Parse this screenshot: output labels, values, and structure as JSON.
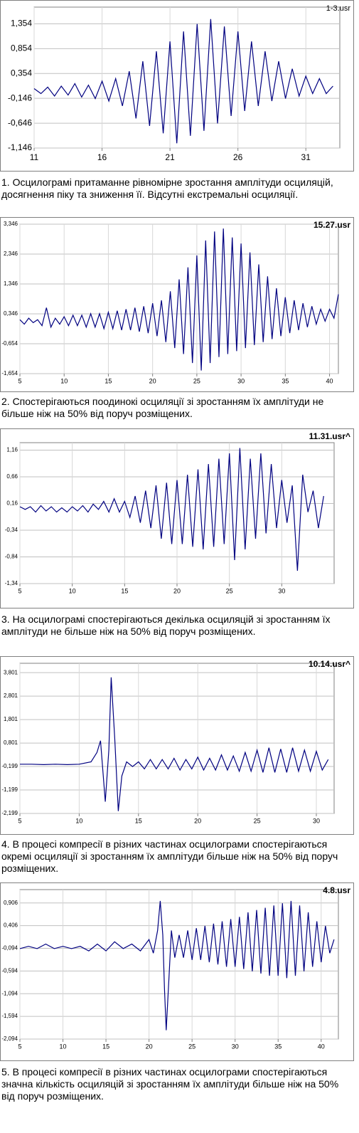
{
  "chart_data": [
    {
      "type": "line",
      "title": "1-3.usr",
      "caption": "1. Осцилограмі притаманне рівномірне зростання амплітуди осциляцій, досягнення піку та зниження її. Відсутні екстремальні осциляції.",
      "xlim": [
        11,
        33.5
      ],
      "ylim": [
        -1.146,
        1.69
      ],
      "xticks": [
        11,
        16,
        21,
        26,
        31
      ],
      "yticks": [
        {
          "value": 1.354,
          "label": "1,354"
        },
        {
          "value": 0.854,
          "label": "0,854"
        },
        {
          "value": 0.354,
          "label": "0,354"
        },
        {
          "value": -0.146,
          "label": "-0,146"
        },
        {
          "value": -0.646,
          "label": "-0,646"
        },
        {
          "value": -1.146,
          "label": "-1,146"
        }
      ],
      "grid": true,
      "series": [
        {
          "color": "#000080",
          "x": [
            11,
            11.5,
            12,
            12.5,
            13,
            13.5,
            14,
            14.5,
            15,
            15.5,
            16,
            16.5,
            17,
            17.5,
            18,
            18.5,
            19,
            19.5,
            20,
            20.5,
            21,
            21.5,
            22,
            22.5,
            23,
            23.5,
            24,
            24.5,
            25,
            25.5,
            26,
            26.5,
            27,
            27.5,
            28,
            28.5,
            29,
            29.5,
            30,
            30.5,
            31,
            31.5,
            32,
            32.5,
            33
          ],
          "values": [
            0.05,
            -0.05,
            0.08,
            -0.1,
            0.1,
            -0.08,
            0.15,
            -0.12,
            0.12,
            -0.15,
            0.2,
            -0.2,
            0.25,
            -0.3,
            0.4,
            -0.55,
            0.6,
            -0.7,
            0.8,
            -0.85,
            1.0,
            -1.05,
            1.2,
            -0.9,
            1.35,
            -0.8,
            1.45,
            -0.65,
            1.3,
            -0.5,
            1.2,
            -0.4,
            1.0,
            -0.3,
            0.8,
            -0.2,
            0.6,
            -0.15,
            0.45,
            -0.1,
            0.3,
            -0.05,
            0.25,
            -0.05,
            0.1
          ]
        }
      ]
    },
    {
      "type": "line",
      "title": "15.27.usr",
      "caption": "2. Спостерігаються поодинокі осциляції зі зростанням їх амплітуди не більше ніж на 50% від поруч розміщених.",
      "xlim": [
        5,
        41
      ],
      "ylim": [
        -1.654,
        3.346
      ],
      "xticks": [
        5,
        10,
        15,
        20,
        25,
        30,
        35,
        40
      ],
      "yticks": [
        {
          "value": 3.346,
          "label": "3,346"
        },
        {
          "value": 2.346,
          "label": "2,346"
        },
        {
          "value": 1.346,
          "label": "1,346"
        },
        {
          "value": 0.346,
          "label": "0,346"
        },
        {
          "value": -0.654,
          "label": "-0,654"
        },
        {
          "value": -1.654,
          "label": "-1,654"
        }
      ],
      "grid": true,
      "series": [
        {
          "color": "#000080",
          "x": [
            5,
            5.5,
            6,
            6.5,
            7,
            7.5,
            8,
            8.5,
            9,
            9.5,
            10,
            10.5,
            11,
            11.5,
            12,
            12.5,
            13,
            13.5,
            14,
            14.5,
            15,
            15.5,
            16,
            16.5,
            17,
            17.5,
            18,
            18.5,
            19,
            19.5,
            20,
            20.5,
            21,
            21.5,
            22,
            22.5,
            23,
            23.5,
            24,
            24.5,
            25,
            25.5,
            26,
            26.5,
            27,
            27.5,
            28,
            28.5,
            29,
            29.5,
            30,
            30.5,
            31,
            31.5,
            32,
            32.5,
            33,
            33.5,
            34,
            34.5,
            35,
            35.5,
            36,
            36.5,
            37,
            37.5,
            38,
            38.5,
            39,
            39.5,
            40,
            40.5,
            41
          ],
          "values": [
            0.15,
            0.0,
            0.2,
            0.05,
            0.15,
            -0.05,
            0.55,
            -0.1,
            0.2,
            0.0,
            0.25,
            -0.05,
            0.3,
            -0.05,
            0.3,
            -0.1,
            0.35,
            -0.1,
            0.35,
            -0.15,
            0.4,
            -0.15,
            0.45,
            -0.2,
            0.5,
            -0.2,
            0.55,
            -0.25,
            0.6,
            -0.3,
            0.7,
            -0.4,
            0.8,
            -0.6,
            1.1,
            -0.8,
            1.5,
            -1.0,
            1.9,
            -1.3,
            2.3,
            -1.55,
            2.8,
            -1.3,
            3.1,
            -1.1,
            3.2,
            -1.0,
            2.9,
            -0.9,
            2.7,
            -0.8,
            2.4,
            -0.7,
            2.0,
            -0.6,
            1.6,
            -0.5,
            1.2,
            -0.4,
            0.9,
            -0.3,
            0.8,
            -0.2,
            0.7,
            -0.1,
            0.6,
            0.0,
            0.5,
            0.1,
            0.5,
            0.2,
            1.0
          ]
        }
      ]
    },
    {
      "type": "line",
      "title": "11.31.usr^",
      "caption": "3. На осцилограмі спостерігаються декілька осциляцій зі зростанням їх амплітуди не більше ніж на 50% від поруч розміщених.",
      "xlim": [
        5,
        35
      ],
      "ylim": [
        -1.34,
        1.3
      ],
      "xticks": [
        5,
        10,
        15,
        20,
        25,
        30
      ],
      "yticks": [
        {
          "value": 1.16,
          "label": "1,16"
        },
        {
          "value": 0.66,
          "label": "0,66"
        },
        {
          "value": 0.16,
          "label": "0,16"
        },
        {
          "value": -0.34,
          "label": "-0,34"
        },
        {
          "value": -0.84,
          "label": "-0,84"
        },
        {
          "value": -1.34,
          "label": "-1,34"
        }
      ],
      "grid": true,
      "series": [
        {
          "color": "#000080",
          "x": [
            5,
            5.5,
            6,
            6.5,
            7,
            7.5,
            8,
            8.5,
            9,
            9.5,
            10,
            10.5,
            11,
            11.5,
            12,
            12.5,
            13,
            13.5,
            14,
            14.5,
            15,
            15.5,
            16,
            16.5,
            17,
            17.5,
            18,
            18.5,
            19,
            19.5,
            20,
            20.5,
            21,
            21.5,
            22,
            22.5,
            23,
            23.5,
            24,
            24.5,
            25,
            25.5,
            26,
            26.5,
            27,
            27.5,
            28,
            28.5,
            29,
            29.5,
            30,
            30.5,
            31,
            31.5,
            32,
            32.5,
            33,
            33.5,
            34
          ],
          "values": [
            0.1,
            0.05,
            0.1,
            0.0,
            0.12,
            0.02,
            0.1,
            0.0,
            0.08,
            0.0,
            0.1,
            0.02,
            0.12,
            0.0,
            0.15,
            0.05,
            0.2,
            0.0,
            0.25,
            0.0,
            0.2,
            -0.1,
            0.3,
            -0.2,
            0.4,
            -0.3,
            0.5,
            -0.5,
            0.55,
            -0.6,
            0.6,
            -0.6,
            0.7,
            -0.65,
            0.8,
            -0.7,
            0.9,
            -0.65,
            1.0,
            -0.6,
            1.1,
            -0.9,
            1.2,
            -0.7,
            1.0,
            -0.5,
            1.1,
            -0.4,
            0.9,
            -0.3,
            0.6,
            -0.2,
            0.5,
            -1.1,
            0.7,
            0.0,
            0.4,
            -0.3,
            0.3
          ]
        }
      ]
    },
    {
      "type": "line",
      "title": "10.14.usr^",
      "caption": "4. В процесі компресії в різних частинах осцилограми спостерігаються окремі осциляції зі зростанням їх амплітуди більше ніж на 50% від поруч розміщених.",
      "xlim": [
        5,
        31.5
      ],
      "ylim": [
        -2.199,
        4.2
      ],
      "xticks": [
        5,
        10,
        15,
        20,
        25,
        30
      ],
      "yticks": [
        {
          "value": 3.801,
          "label": "3,801"
        },
        {
          "value": 2.801,
          "label": "2,801"
        },
        {
          "value": 1.801,
          "label": "1,801"
        },
        {
          "value": 0.801,
          "label": "0,801"
        },
        {
          "value": -0.199,
          "label": "-0,199"
        },
        {
          "value": -1.199,
          "label": "-1,199"
        },
        {
          "value": -2.199,
          "label": "-2,199"
        }
      ],
      "grid": true,
      "series": [
        {
          "color": "#000080",
          "x": [
            5,
            6,
            7,
            8,
            9,
            10,
            11,
            11.5,
            11.8,
            12.2,
            12.5,
            12.7,
            13,
            13.3,
            13.6,
            14,
            14.5,
            15,
            15.5,
            16,
            16.5,
            17,
            17.5,
            18,
            18.5,
            19,
            19.5,
            20,
            20.5,
            21,
            21.5,
            22,
            22.5,
            23,
            23.5,
            24,
            24.5,
            25,
            25.5,
            26,
            26.5,
            27,
            27.5,
            28,
            28.5,
            29,
            29.5,
            30,
            30.5,
            31
          ],
          "values": [
            -0.1,
            -0.1,
            -0.12,
            -0.1,
            -0.12,
            -0.1,
            0.0,
            0.4,
            0.9,
            -1.7,
            0.5,
            3.6,
            1.0,
            -2.1,
            -0.6,
            0.0,
            -0.2,
            0.0,
            -0.3,
            0.1,
            -0.3,
            0.1,
            -0.3,
            0.15,
            -0.35,
            0.1,
            -0.3,
            0.2,
            -0.35,
            0.15,
            -0.35,
            0.3,
            -0.35,
            0.25,
            -0.4,
            0.4,
            -0.4,
            0.5,
            -0.45,
            0.6,
            -0.45,
            0.55,
            -0.45,
            0.6,
            -0.4,
            0.5,
            -0.4,
            0.45,
            -0.35,
            0.1
          ]
        }
      ]
    },
    {
      "type": "line",
      "title": "4.8.usr",
      "caption": "5. В процесі компресії в різних частинах осцилограми спостерігаються значна кількість осциляцій зі зростанням їх амплітуди більше ніж на 50% від поруч розміщених.",
      "xlim": [
        5,
        42
      ],
      "ylim": [
        -2.094,
        1.2
      ],
      "xticks": [
        5,
        10,
        15,
        20,
        25,
        30,
        35,
        40
      ],
      "yticks": [
        {
          "value": 0.906,
          "label": "0,906"
        },
        {
          "value": 0.406,
          "label": "0,406"
        },
        {
          "value": -0.094,
          "label": "-0,094"
        },
        {
          "value": -0.594,
          "label": "-0,594"
        },
        {
          "value": -1.094,
          "label": "-1,094"
        },
        {
          "value": -1.594,
          "label": "-1,594"
        },
        {
          "value": -2.094,
          "label": "-2,094"
        }
      ],
      "grid": true,
      "series": [
        {
          "color": "#000080",
          "x": [
            5,
            6,
            7,
            8,
            9,
            10,
            11,
            12,
            13,
            14,
            15,
            16,
            17,
            18,
            19,
            20,
            20.5,
            21,
            21.3,
            21.6,
            21.8,
            22,
            22.3,
            22.6,
            23,
            23.5,
            24,
            24.5,
            25,
            25.5,
            26,
            26.5,
            27,
            27.5,
            28,
            28.5,
            29,
            29.5,
            30,
            30.5,
            31,
            31.5,
            32,
            32.5,
            33,
            33.5,
            34,
            34.5,
            35,
            35.5,
            36,
            36.5,
            37,
            37.5,
            38,
            38.5,
            39,
            39.5,
            40,
            40.5,
            41,
            41.5
          ],
          "values": [
            -0.1,
            -0.05,
            -0.1,
            0.0,
            -0.1,
            -0.05,
            -0.1,
            -0.05,
            -0.15,
            0.0,
            -0.15,
            0.05,
            -0.1,
            0.0,
            -0.15,
            0.1,
            -0.2,
            0.3,
            0.95,
            0.2,
            -1.0,
            -1.9,
            -0.8,
            0.3,
            -0.3,
            0.2,
            -0.3,
            0.3,
            -0.35,
            0.35,
            -0.35,
            0.4,
            -0.4,
            0.45,
            -0.45,
            0.5,
            -0.5,
            0.55,
            -0.5,
            0.6,
            -0.55,
            0.7,
            -0.6,
            0.75,
            -0.65,
            0.8,
            -0.7,
            0.85,
            -0.7,
            0.9,
            -0.75,
            0.95,
            -0.7,
            0.85,
            -0.6,
            0.7,
            -0.5,
            0.5,
            -0.4,
            0.4,
            -0.2,
            0.1
          ]
        }
      ]
    }
  ]
}
